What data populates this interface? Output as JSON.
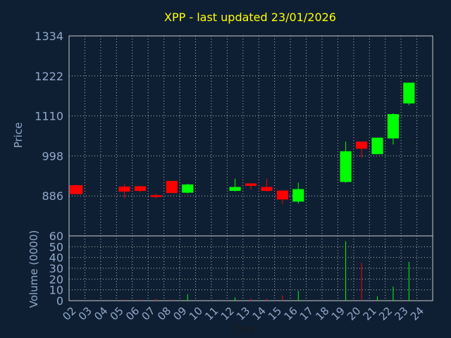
{
  "chart_data": {
    "type": "candlestick",
    "title": "XPP - last updated 23/01/2026",
    "xlabel": "Day",
    "price_panel": {
      "ylabel": "Price",
      "ylim": [
        774,
        1334
      ],
      "yticks": [
        "1334",
        "1222",
        "1110",
        "998",
        "886"
      ],
      "ytick_values": [
        1334,
        1222,
        1110,
        998,
        886
      ],
      "grid": true
    },
    "volume_panel": {
      "ylabel": "Volume (0000)",
      "ylim": [
        0,
        60
      ],
      "yticks": [
        "60",
        "50",
        "40",
        "30",
        "20",
        "10",
        "0"
      ],
      "ytick_values": [
        60,
        50,
        40,
        30,
        20,
        10,
        0
      ],
      "grid": true
    },
    "days": [
      "02",
      "03",
      "04",
      "05",
      "06",
      "07",
      "08",
      "09",
      "10",
      "11",
      "12",
      "13",
      "14",
      "15",
      "16",
      "17",
      "18",
      "19",
      "20",
      "21",
      "22",
      "23",
      "24"
    ],
    "candles": [
      {
        "day": "02",
        "open": 916,
        "close": 891,
        "high": 916,
        "low": 891
      },
      {
        "day": "05",
        "open": 912,
        "close": 898,
        "high": 919,
        "low": 880
      },
      {
        "day": "06",
        "open": 913,
        "close": 900,
        "high": 913,
        "low": 896
      },
      {
        "day": "07",
        "open": 888,
        "close": 883,
        "high": 892,
        "low": 880
      },
      {
        "day": "08",
        "open": 928,
        "close": 894,
        "high": 928,
        "low": 894
      },
      {
        "day": "09",
        "open": 895,
        "close": 918,
        "high": 920,
        "low": 893
      },
      {
        "day": "12",
        "open": 900,
        "close": 911,
        "high": 934,
        "low": 899
      },
      {
        "day": "13",
        "open": 921,
        "close": 914,
        "high": 921,
        "low": 905
      },
      {
        "day": "14",
        "open": 911,
        "close": 900,
        "high": 933,
        "low": 898
      },
      {
        "day": "15",
        "open": 901,
        "close": 876,
        "high": 901,
        "low": 864
      },
      {
        "day": "16",
        "open": 870,
        "close": 905,
        "high": 923,
        "low": 865
      },
      {
        "day": "19",
        "open": 925,
        "close": 1011,
        "high": 1038,
        "low": 923
      },
      {
        "day": "20",
        "open": 1038,
        "close": 1018,
        "high": 1038,
        "low": 993
      },
      {
        "day": "21",
        "open": 1003,
        "close": 1049,
        "high": 1049,
        "low": 1003
      },
      {
        "day": "22",
        "open": 1047,
        "close": 1115,
        "high": 1117,
        "low": 1030
      },
      {
        "day": "23",
        "open": 1145,
        "close": 1203,
        "high": 1203,
        "low": 1140
      }
    ],
    "volume": [
      {
        "day": "05",
        "value": 1,
        "dir": "down"
      },
      {
        "day": "06",
        "value": 1,
        "dir": "down"
      },
      {
        "day": "07",
        "value": 2,
        "dir": "down"
      },
      {
        "day": "08",
        "value": 1,
        "dir": "down"
      },
      {
        "day": "09",
        "value": 6,
        "dir": "up"
      },
      {
        "day": "12",
        "value": 3,
        "dir": "up"
      },
      {
        "day": "13",
        "value": 2,
        "dir": "down"
      },
      {
        "day": "14",
        "value": 2,
        "dir": "down"
      },
      {
        "day": "15",
        "value": 5,
        "dir": "down"
      },
      {
        "day": "16",
        "value": 9,
        "dir": "up"
      },
      {
        "day": "19",
        "value": 55,
        "dir": "up"
      },
      {
        "day": "20",
        "value": 35,
        "dir": "down"
      },
      {
        "day": "21",
        "value": 4,
        "dir": "up"
      },
      {
        "day": "22",
        "value": 13,
        "dir": "up"
      },
      {
        "day": "23",
        "value": 36,
        "dir": "up"
      }
    ],
    "colors": {
      "background": "#0f1f33",
      "frame": "#c8c8c8",
      "grid": "#b4b4b4",
      "title": "#ffff00",
      "tick_label": "#8fa9c9",
      "axis_label": "#8fa9c9",
      "up": "#00ff00",
      "down": "#ff0000"
    }
  }
}
